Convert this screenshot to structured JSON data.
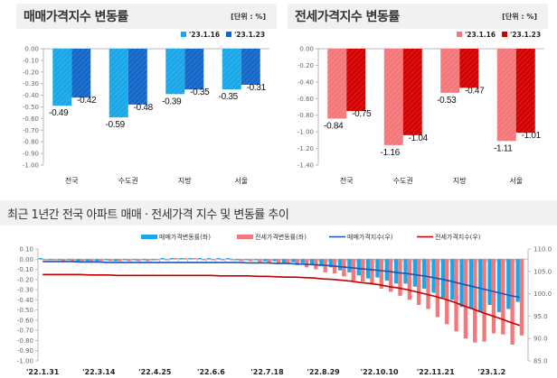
{
  "panels": {
    "sales": {
      "title": "매매가격지수 변동률",
      "unit": "[단위 : %]"
    },
    "jeonse": {
      "title": "전세가격지수 변동률",
      "unit": "[단위 : %]"
    },
    "trend": {
      "title": "최근 1년간 전국 아파트 매매 · 전세가격 지수 및 변동률 추이"
    }
  },
  "colors": {
    "sales_prev": "#1aa7e8",
    "sales_cur": "#1466c8",
    "jeonse_prev": "#f4777a",
    "jeonse_cur": "#d40000",
    "sales_index_line": "#1a55b4",
    "jeonse_index_line": "#c00000"
  },
  "chart_data": [
    {
      "type": "bar",
      "title": "매매가격지수 변동률",
      "categories": [
        "전국",
        "수도권",
        "지방",
        "서울"
      ],
      "series": [
        {
          "name": "'23.1.16",
          "values": [
            -0.49,
            -0.59,
            -0.39,
            -0.35
          ]
        },
        {
          "name": "'23.1.23",
          "values": [
            -0.42,
            -0.48,
            -0.35,
            -0.31
          ]
        }
      ],
      "ylim": [
        -1.0,
        0.0
      ],
      "yticks": [
        "0.00",
        "-0.10",
        "-0.20",
        "-0.30",
        "-0.40",
        "-0.50",
        "-0.60",
        "-0.70",
        "-0.80",
        "-0.90",
        "-1.00"
      ],
      "legend": "top-right",
      "unit": "%"
    },
    {
      "type": "bar",
      "title": "전세가격지수 변동률",
      "categories": [
        "전국",
        "수도권",
        "지방",
        "서울"
      ],
      "series": [
        {
          "name": "'23.1.16",
          "values": [
            -0.84,
            -1.16,
            -0.53,
            -1.11
          ]
        },
        {
          "name": "'23.1.23",
          "values": [
            -0.75,
            -1.04,
            -0.47,
            -1.01
          ]
        }
      ],
      "ylim": [
        -1.4,
        0.0
      ],
      "yticks": [
        "0.00",
        "-0.20",
        "-0.40",
        "-0.60",
        "-0.80",
        "-1.00",
        "-1.20",
        "-1.40"
      ],
      "legend": "top-right",
      "unit": "%"
    },
    {
      "type": "bar+line",
      "title": "최근 1년간 전국 아파트 매매 · 전세가격 지수 및 변동률 추이",
      "x_tick_labels": [
        "'22.1.31",
        "'22.3.14",
        "'22.4.25",
        "'22.6.6",
        "'22.7.18",
        "'22.8.29",
        "'22.10.10",
        "'22.11.21",
        "'23.1.2"
      ],
      "n_weeks": 52,
      "legend": "top-right",
      "legend_labels": [
        "매매가격변동률(좌)",
        "전세가격변동률(좌)",
        "매매가격지수(우)",
        "전세가격지수(우)"
      ],
      "left_ylim": [
        -1.0,
        0.1
      ],
      "left_yticks": [
        "0.10",
        "0.00",
        "-0.10",
        "-0.20",
        "-0.30",
        "-0.40",
        "-0.50",
        "-0.60",
        "-0.70",
        "-0.80",
        "-0.90",
        "-1.00"
      ],
      "right_ylim": [
        85.0,
        110.0
      ],
      "right_yticks": [
        "110.0",
        "105.0",
        "100.0",
        "95.0",
        "90.0",
        "85.0"
      ],
      "series": [
        {
          "name": "매매가격변동률(좌)",
          "kind": "bar",
          "values": [
            0.0,
            -0.01,
            -0.01,
            -0.01,
            -0.02,
            -0.02,
            -0.02,
            -0.01,
            -0.02,
            -0.01,
            -0.01,
            -0.01,
            -0.01,
            0.0,
            0.0,
            0.01,
            0.0,
            0.0,
            0.0,
            0.01,
            0.0,
            -0.01,
            -0.01,
            -0.01,
            -0.02,
            -0.02,
            -0.04,
            -0.03,
            -0.04,
            -0.05,
            -0.07,
            -0.08,
            -0.11,
            -0.13,
            -0.16,
            -0.19,
            -0.18,
            -0.21,
            -0.24,
            -0.24,
            -0.27,
            -0.29,
            -0.33,
            -0.38,
            -0.4,
            -0.47,
            -0.49,
            -0.52,
            -0.45,
            -0.52,
            -0.49,
            -0.42
          ]
        },
        {
          "name": "전세가격변동률(좌)",
          "kind": "bar",
          "values": [
            -0.01,
            -0.01,
            -0.02,
            -0.02,
            -0.02,
            -0.03,
            -0.02,
            -0.02,
            -0.02,
            -0.02,
            -0.02,
            -0.02,
            -0.01,
            -0.01,
            0.0,
            0.0,
            0.0,
            -0.01,
            -0.01,
            -0.01,
            -0.01,
            -0.02,
            -0.02,
            -0.03,
            -0.04,
            -0.05,
            -0.05,
            -0.06,
            -0.08,
            -0.1,
            -0.13,
            -0.14,
            -0.17,
            -0.21,
            -0.22,
            -0.25,
            -0.29,
            -0.32,
            -0.36,
            -0.4,
            -0.45,
            -0.49,
            -0.57,
            -0.64,
            -0.71,
            -0.78,
            -0.82,
            -0.81,
            -0.73,
            -0.74,
            -0.84,
            -0.75
          ]
        },
        {
          "name": "매매가격지수(우)",
          "kind": "line",
          "axis": "right",
          "values": [
            107.2,
            107.2,
            107.2,
            107.2,
            107.1,
            107.1,
            107.1,
            107.0,
            107.0,
            107.0,
            107.0,
            107.0,
            107.0,
            107.0,
            107.0,
            107.0,
            107.0,
            107.0,
            107.0,
            107.0,
            107.0,
            107.0,
            106.9,
            106.9,
            106.9,
            106.8,
            106.8,
            106.7,
            106.6,
            106.5,
            106.4,
            106.2,
            106.0,
            105.8,
            105.6,
            105.4,
            105.2,
            105.0,
            104.7,
            104.5,
            104.2,
            103.9,
            103.5,
            103.1,
            102.6,
            102.1,
            101.6,
            101.1,
            100.6,
            100.1,
            99.6,
            99.2
          ]
        },
        {
          "name": "전세가격지수(우)",
          "kind": "line",
          "axis": "right",
          "values": [
            104.3,
            104.3,
            104.3,
            104.3,
            104.3,
            104.2,
            104.2,
            104.2,
            104.1,
            104.1,
            104.1,
            104.1,
            104.1,
            104.1,
            104.1,
            104.1,
            104.1,
            104.1,
            104.1,
            104.0,
            104.0,
            104.0,
            104.0,
            103.9,
            103.9,
            103.8,
            103.7,
            103.7,
            103.6,
            103.5,
            103.3,
            103.2,
            103.0,
            102.8,
            102.5,
            102.3,
            102.0,
            101.6,
            101.3,
            100.9,
            100.4,
            99.9,
            99.4,
            98.8,
            98.1,
            97.3,
            96.6,
            95.8,
            95.1,
            94.4,
            93.6,
            92.9
          ]
        }
      ]
    }
  ]
}
